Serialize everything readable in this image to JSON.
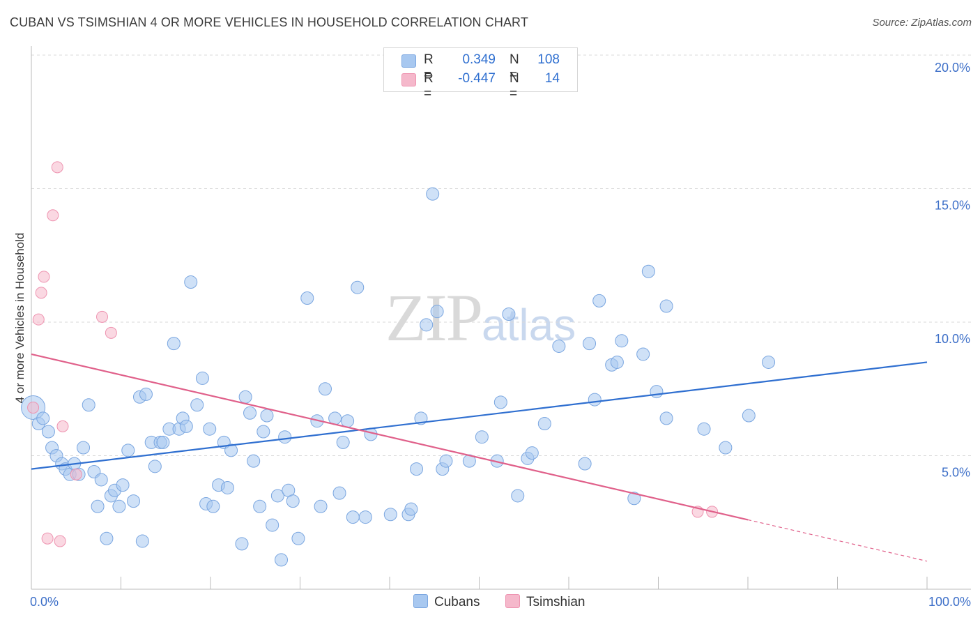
{
  "header": {
    "title": "CUBAN VS TSIMSHIAN 4 OR MORE VEHICLES IN HOUSEHOLD CORRELATION CHART",
    "source": "Source: ZipAtlas.com"
  },
  "watermark": {
    "zip": "ZIP",
    "atlas": "atlas"
  },
  "legend": {
    "rows": [
      {
        "series": "Cubans",
        "r_label": "R =",
        "r_value": "0.349",
        "n_label": "N =",
        "n_value": "108",
        "color": "#a8c8f0"
      },
      {
        "series": "Tsimshian",
        "r_label": "R =",
        "r_value": "-0.447",
        "n_label": "N =",
        "n_value": "14",
        "color": "#f5b8cb"
      }
    ]
  },
  "bottom_legend": {
    "cubans": "Cubans",
    "tsimshian": "Tsimshian"
  },
  "colors": {
    "cubans_fill": "#a8c8f0",
    "cubans_stroke": "#7aa6e0",
    "cubans_line": "#2f6fd0",
    "tsimshian_fill": "#f5b8cb",
    "tsimshian_stroke": "#ee93b0",
    "tsimshian_line": "#e0608a",
    "axis_text": "#3d6fc8",
    "grid": "#d9d9d9"
  },
  "chart_data": {
    "type": "scatter",
    "title": "CUBAN VS TSIMSHIAN 4 OR MORE VEHICLES IN HOUSEHOLD CORRELATION CHART",
    "xlabel": "",
    "ylabel": "4 or more Vehicles in Household",
    "xlim": [
      0,
      100
    ],
    "ylim": [
      0,
      20
    ],
    "x_tick_labels": [
      "0.0%",
      "100.0%"
    ],
    "y_ticks": [
      5,
      10,
      15,
      20
    ],
    "y_tick_labels": [
      "5.0%",
      "10.0%",
      "15.0%",
      "20.0%"
    ],
    "grid": true,
    "series": [
      {
        "name": "Cubans",
        "points": [
          [
            0.2,
            6.8
          ],
          [
            0.8,
            6.2
          ],
          [
            1.3,
            6.4
          ],
          [
            1.9,
            5.9
          ],
          [
            2.3,
            5.3
          ],
          [
            2.8,
            5.0
          ],
          [
            3.4,
            4.7
          ],
          [
            3.8,
            4.5
          ],
          [
            4.3,
            4.3
          ],
          [
            4.8,
            4.7
          ],
          [
            5.3,
            4.3
          ],
          [
            5.8,
            5.3
          ],
          [
            6.4,
            6.9
          ],
          [
            7.0,
            4.4
          ],
          [
            7.4,
            3.1
          ],
          [
            7.8,
            4.1
          ],
          [
            8.4,
            1.9
          ],
          [
            8.9,
            3.5
          ],
          [
            9.3,
            3.7
          ],
          [
            9.8,
            3.1
          ],
          [
            10.2,
            3.9
          ],
          [
            10.8,
            5.2
          ],
          [
            11.4,
            3.3
          ],
          [
            12.1,
            7.2
          ],
          [
            12.4,
            1.8
          ],
          [
            12.8,
            7.3
          ],
          [
            13.4,
            5.5
          ],
          [
            13.8,
            4.6
          ],
          [
            14.4,
            5.5
          ],
          [
            14.7,
            5.5
          ],
          [
            15.4,
            6.0
          ],
          [
            15.9,
            9.2
          ],
          [
            16.5,
            6.0
          ],
          [
            16.9,
            6.4
          ],
          [
            17.3,
            6.1
          ],
          [
            17.8,
            11.5
          ],
          [
            18.5,
            6.9
          ],
          [
            19.1,
            7.9
          ],
          [
            19.5,
            3.2
          ],
          [
            19.9,
            6.0
          ],
          [
            20.3,
            3.1
          ],
          [
            20.9,
            3.9
          ],
          [
            21.5,
            5.5
          ],
          [
            21.9,
            3.8
          ],
          [
            22.3,
            5.2
          ],
          [
            23.5,
            1.7
          ],
          [
            23.9,
            7.2
          ],
          [
            24.4,
            6.6
          ],
          [
            24.8,
            4.8
          ],
          [
            25.5,
            3.1
          ],
          [
            25.9,
            5.9
          ],
          [
            26.3,
            6.5
          ],
          [
            26.9,
            2.4
          ],
          [
            27.5,
            3.5
          ],
          [
            27.9,
            1.1
          ],
          [
            28.3,
            5.7
          ],
          [
            28.7,
            3.7
          ],
          [
            29.2,
            3.3
          ],
          [
            29.8,
            1.9
          ],
          [
            30.8,
            10.9
          ],
          [
            31.9,
            6.3
          ],
          [
            32.3,
            3.1
          ],
          [
            32.8,
            7.5
          ],
          [
            33.9,
            6.4
          ],
          [
            34.4,
            3.6
          ],
          [
            34.8,
            5.5
          ],
          [
            35.3,
            6.3
          ],
          [
            35.9,
            2.7
          ],
          [
            36.4,
            11.3
          ],
          [
            37.3,
            2.7
          ],
          [
            37.9,
            5.8
          ],
          [
            40.1,
            2.8
          ],
          [
            42.1,
            2.8
          ],
          [
            42.4,
            3.0
          ],
          [
            43.0,
            4.5
          ],
          [
            43.5,
            6.4
          ],
          [
            44.1,
            9.9
          ],
          [
            44.8,
            14.8
          ],
          [
            45.3,
            10.4
          ],
          [
            45.9,
            4.5
          ],
          [
            46.3,
            4.8
          ],
          [
            48.9,
            4.8
          ],
          [
            50.3,
            5.7
          ],
          [
            52.0,
            4.8
          ],
          [
            52.4,
            7.0
          ],
          [
            53.3,
            10.3
          ],
          [
            54.3,
            3.5
          ],
          [
            55.4,
            4.9
          ],
          [
            55.9,
            5.1
          ],
          [
            57.3,
            6.2
          ],
          [
            58.9,
            9.1
          ],
          [
            61.8,
            4.7
          ],
          [
            62.3,
            9.2
          ],
          [
            62.9,
            7.1
          ],
          [
            63.4,
            10.8
          ],
          [
            64.8,
            8.4
          ],
          [
            65.4,
            8.5
          ],
          [
            65.9,
            9.3
          ],
          [
            67.3,
            3.4
          ],
          [
            68.3,
            8.8
          ],
          [
            68.9,
            11.9
          ],
          [
            69.8,
            7.4
          ],
          [
            70.9,
            10.6
          ],
          [
            70.9,
            6.4
          ],
          [
            75.1,
            6.0
          ],
          [
            77.5,
            5.3
          ],
          [
            80.1,
            6.5
          ],
          [
            82.3,
            8.5
          ]
        ],
        "trend": {
          "x": [
            0,
            100
          ],
          "y": [
            4.5,
            8.5
          ]
        }
      },
      {
        "name": "Tsimshian",
        "points": [
          [
            0.2,
            6.8
          ],
          [
            0.8,
            10.1
          ],
          [
            1.1,
            11.1
          ],
          [
            1.4,
            11.7
          ],
          [
            1.8,
            1.9
          ],
          [
            2.4,
            14.0
          ],
          [
            2.9,
            15.8
          ],
          [
            3.2,
            1.8
          ],
          [
            3.5,
            6.1
          ],
          [
            5.0,
            4.3
          ],
          [
            7.9,
            10.2
          ],
          [
            8.9,
            9.6
          ],
          [
            74.4,
            2.9
          ],
          [
            76.0,
            2.9
          ]
        ],
        "trend": {
          "x": [
            0,
            80
          ],
          "y": [
            8.8,
            2.6
          ]
        },
        "trend_extension": {
          "x": [
            80,
            100
          ],
          "y": [
            2.6,
            1.05
          ]
        }
      }
    ]
  },
  "ylabel_text": "4 or more Vehicles in Household"
}
